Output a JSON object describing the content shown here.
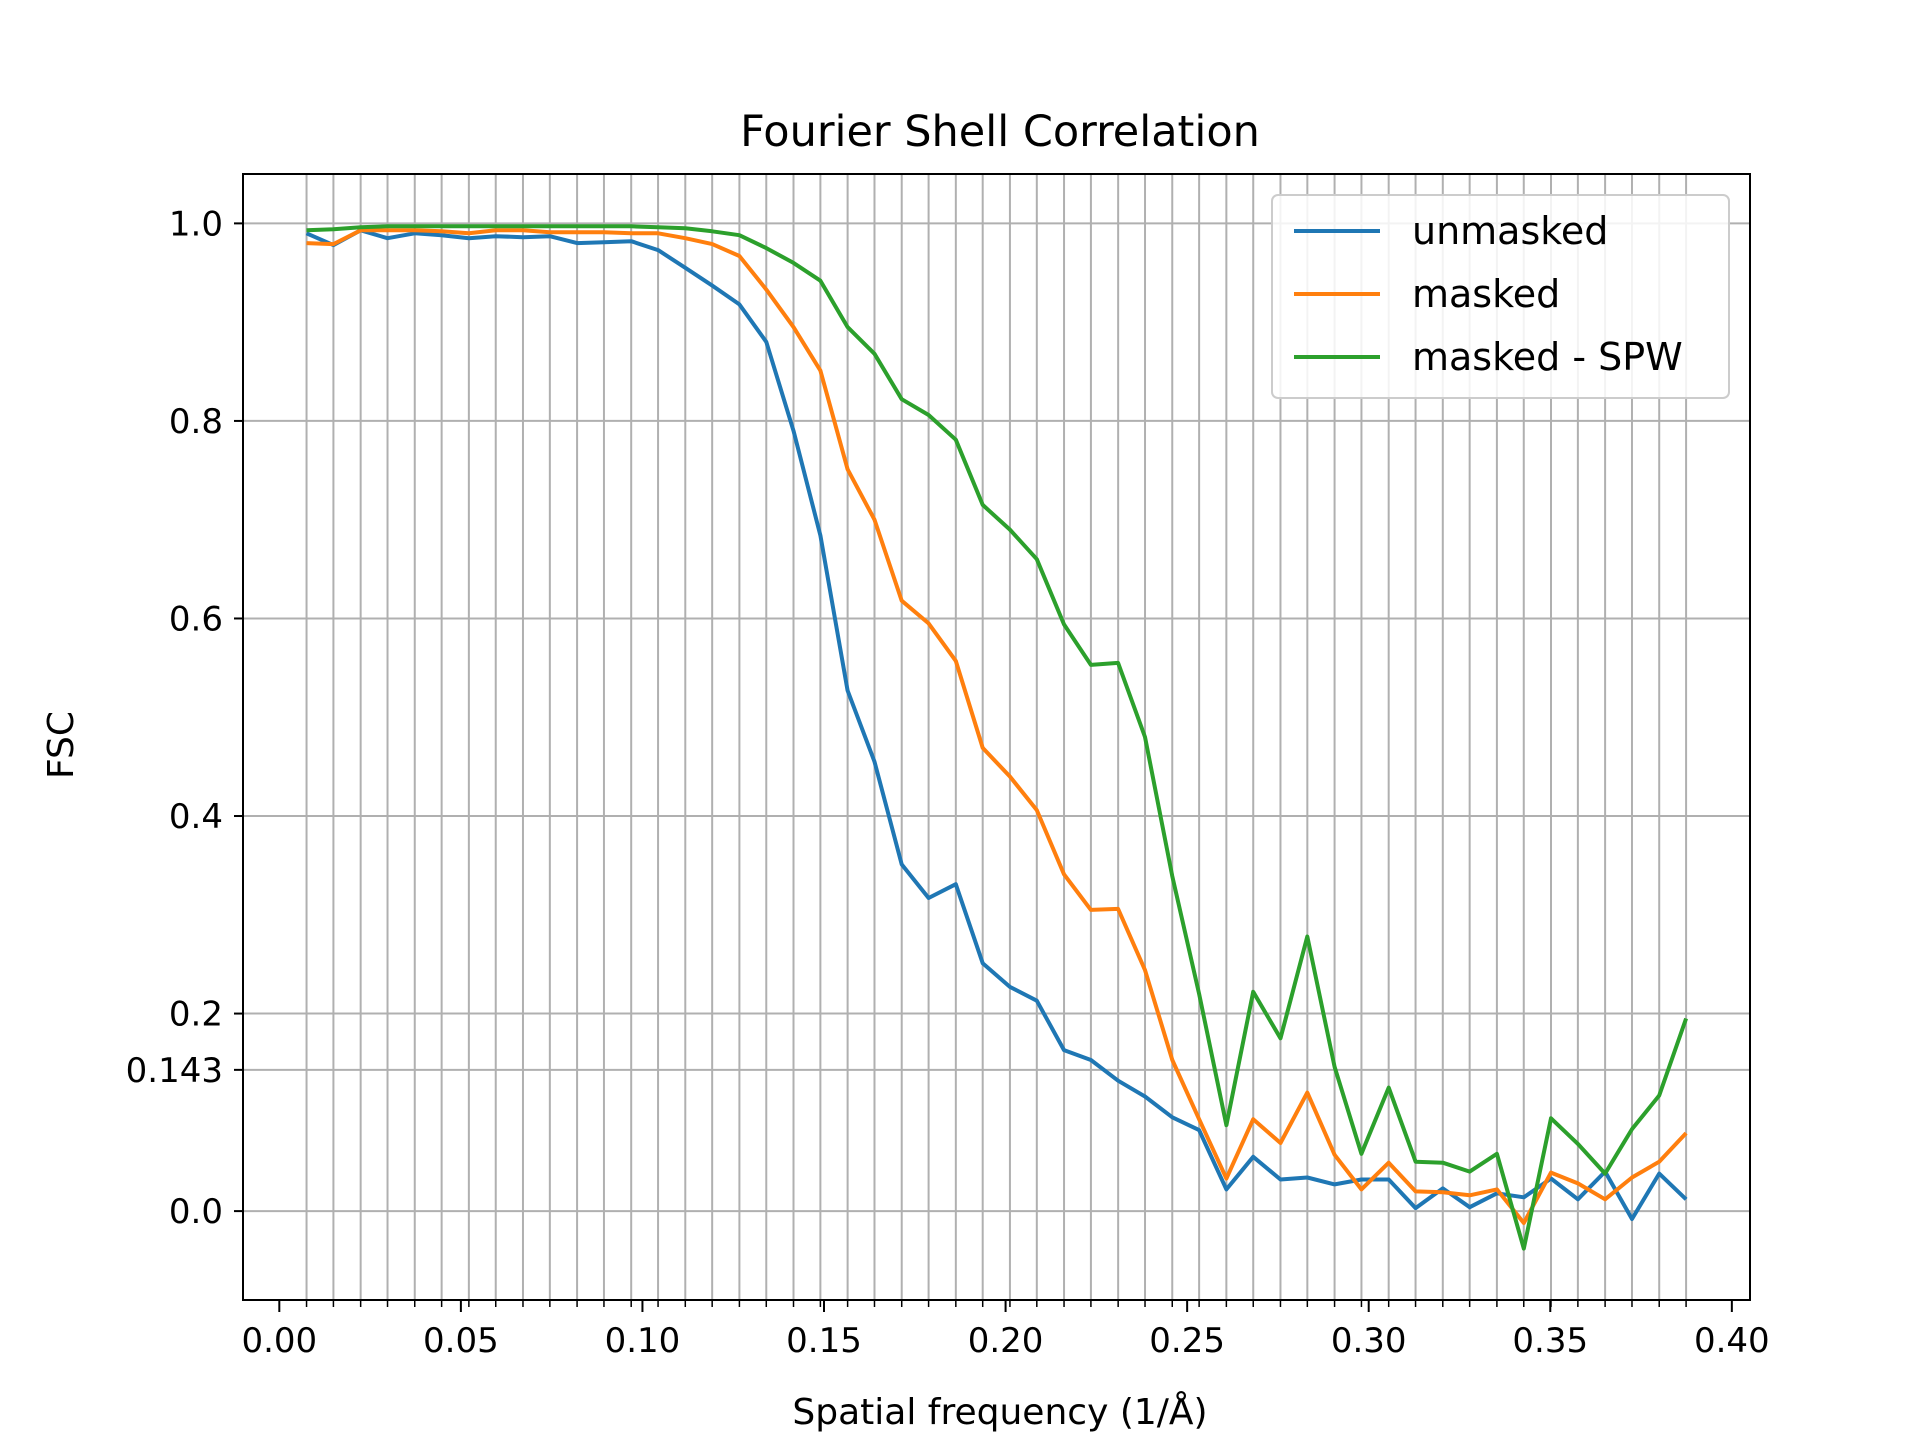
{
  "chart_data": {
    "type": "line",
    "title": "Fourier Shell Correlation",
    "xlabel": "Spatial frequency (1/Å)",
    "ylabel": "FSC",
    "xlim": [
      -0.01,
      0.405
    ],
    "ylim": [
      -0.09,
      1.05
    ],
    "xticks": [
      0.0,
      0.05,
      0.1,
      0.15,
      0.2,
      0.25,
      0.3,
      0.35,
      0.4
    ],
    "xtick_labels": [
      "0.00",
      "0.05",
      "0.10",
      "0.15",
      "0.20",
      "0.25",
      "0.30",
      "0.35",
      "0.40"
    ],
    "yticks": [
      0.0,
      0.143,
      0.2,
      0.4,
      0.6,
      0.8,
      1.0
    ],
    "ytick_labels": [
      "0.0",
      "0.143",
      "0.2",
      "0.4",
      "0.6",
      "0.8",
      "1.0"
    ],
    "grid": true,
    "legend_position": "top-right",
    "x": [
      0.0075,
      0.0149,
      0.0224,
      0.0298,
      0.0373,
      0.0447,
      0.0522,
      0.0596,
      0.0671,
      0.0745,
      0.082,
      0.0894,
      0.0969,
      0.1043,
      0.1118,
      0.1192,
      0.1267,
      0.1341,
      0.1416,
      0.149,
      0.1565,
      0.1639,
      0.1714,
      0.1788,
      0.1863,
      0.1937,
      0.2012,
      0.2086,
      0.2161,
      0.2235,
      0.231,
      0.2384,
      0.2459,
      0.2533,
      0.2608,
      0.2682,
      0.2757,
      0.2831,
      0.2906,
      0.298,
      0.3055,
      0.3129,
      0.3204,
      0.3278,
      0.3353,
      0.3427,
      0.3502,
      0.3576,
      0.3651,
      0.3725,
      0.38,
      0.3874
    ],
    "series": [
      {
        "name": "unmasked",
        "color": "#1f77b4",
        "values": [
          0.99,
          0.978,
          0.993,
          0.985,
          0.99,
          0.988,
          0.985,
          0.987,
          0.986,
          0.987,
          0.98,
          0.981,
          0.982,
          0.973,
          0.955,
          0.937,
          0.918,
          0.88,
          0.79,
          0.684,
          0.527,
          0.455,
          0.351,
          0.317,
          0.331,
          0.251,
          0.227,
          0.213,
          0.163,
          0.153,
          0.132,
          0.116,
          0.095,
          0.082,
          0.022,
          0.055,
          0.032,
          0.034,
          0.027,
          0.032,
          0.032,
          0.003,
          0.023,
          0.004,
          0.018,
          0.014,
          0.033,
          0.012,
          0.04,
          -0.008,
          0.038,
          0.012
        ]
      },
      {
        "name": "masked",
        "color": "#ff7f0e",
        "values": [
          0.98,
          0.979,
          0.993,
          0.993,
          0.993,
          0.992,
          0.99,
          0.993,
          0.993,
          0.991,
          0.991,
          0.991,
          0.99,
          0.99,
          0.985,
          0.979,
          0.967,
          0.933,
          0.895,
          0.851,
          0.751,
          0.7,
          0.618,
          0.595,
          0.557,
          0.469,
          0.44,
          0.406,
          0.341,
          0.305,
          0.306,
          0.244,
          0.153,
          0.093,
          0.033,
          0.093,
          0.069,
          0.12,
          0.057,
          0.022,
          0.049,
          0.02,
          0.019,
          0.016,
          0.022,
          -0.012,
          0.039,
          0.028,
          0.012,
          0.034,
          0.05,
          0.079
        ]
      },
      {
        "name": "masked - SPW",
        "color": "#2ca02c",
        "values": [
          0.993,
          0.994,
          0.996,
          0.997,
          0.997,
          0.997,
          0.997,
          0.997,
          0.997,
          0.997,
          0.997,
          0.997,
          0.997,
          0.996,
          0.995,
          0.992,
          0.988,
          0.975,
          0.96,
          0.942,
          0.895,
          0.868,
          0.822,
          0.806,
          0.781,
          0.715,
          0.69,
          0.66,
          0.594,
          0.553,
          0.555,
          0.48,
          0.339,
          0.22,
          0.087,
          0.222,
          0.175,
          0.278,
          0.146,
          0.058,
          0.125,
          0.05,
          0.049,
          0.04,
          0.058,
          -0.038,
          0.094,
          0.068,
          0.038,
          0.083,
          0.117,
          0.195
        ]
      }
    ]
  }
}
